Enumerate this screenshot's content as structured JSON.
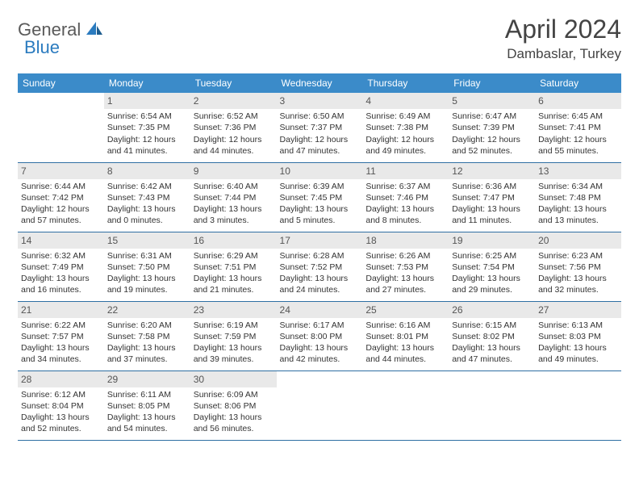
{
  "logo": {
    "text1": "General",
    "text2": "Blue"
  },
  "title": "April 2024",
  "location": "Dambaslar, Turkey",
  "colors": {
    "header_bg": "#3b8bc9",
    "header_text": "#ffffff",
    "daynum_bg": "#e9e9e9",
    "row_border": "#2f6fa3",
    "logo_gray": "#5a5a5a",
    "logo_blue": "#2b7bbf"
  },
  "day_headers": [
    "Sunday",
    "Monday",
    "Tuesday",
    "Wednesday",
    "Thursday",
    "Friday",
    "Saturday"
  ],
  "weeks": [
    [
      {
        "n": "",
        "s": "",
        "ss": "",
        "d": ""
      },
      {
        "n": "1",
        "s": "Sunrise: 6:54 AM",
        "ss": "Sunset: 7:35 PM",
        "d": "Daylight: 12 hours and 41 minutes."
      },
      {
        "n": "2",
        "s": "Sunrise: 6:52 AM",
        "ss": "Sunset: 7:36 PM",
        "d": "Daylight: 12 hours and 44 minutes."
      },
      {
        "n": "3",
        "s": "Sunrise: 6:50 AM",
        "ss": "Sunset: 7:37 PM",
        "d": "Daylight: 12 hours and 47 minutes."
      },
      {
        "n": "4",
        "s": "Sunrise: 6:49 AM",
        "ss": "Sunset: 7:38 PM",
        "d": "Daylight: 12 hours and 49 minutes."
      },
      {
        "n": "5",
        "s": "Sunrise: 6:47 AM",
        "ss": "Sunset: 7:39 PM",
        "d": "Daylight: 12 hours and 52 minutes."
      },
      {
        "n": "6",
        "s": "Sunrise: 6:45 AM",
        "ss": "Sunset: 7:41 PM",
        "d": "Daylight: 12 hours and 55 minutes."
      }
    ],
    [
      {
        "n": "7",
        "s": "Sunrise: 6:44 AM",
        "ss": "Sunset: 7:42 PM",
        "d": "Daylight: 12 hours and 57 minutes."
      },
      {
        "n": "8",
        "s": "Sunrise: 6:42 AM",
        "ss": "Sunset: 7:43 PM",
        "d": "Daylight: 13 hours and 0 minutes."
      },
      {
        "n": "9",
        "s": "Sunrise: 6:40 AM",
        "ss": "Sunset: 7:44 PM",
        "d": "Daylight: 13 hours and 3 minutes."
      },
      {
        "n": "10",
        "s": "Sunrise: 6:39 AM",
        "ss": "Sunset: 7:45 PM",
        "d": "Daylight: 13 hours and 5 minutes."
      },
      {
        "n": "11",
        "s": "Sunrise: 6:37 AM",
        "ss": "Sunset: 7:46 PM",
        "d": "Daylight: 13 hours and 8 minutes."
      },
      {
        "n": "12",
        "s": "Sunrise: 6:36 AM",
        "ss": "Sunset: 7:47 PM",
        "d": "Daylight: 13 hours and 11 minutes."
      },
      {
        "n": "13",
        "s": "Sunrise: 6:34 AM",
        "ss": "Sunset: 7:48 PM",
        "d": "Daylight: 13 hours and 13 minutes."
      }
    ],
    [
      {
        "n": "14",
        "s": "Sunrise: 6:32 AM",
        "ss": "Sunset: 7:49 PM",
        "d": "Daylight: 13 hours and 16 minutes."
      },
      {
        "n": "15",
        "s": "Sunrise: 6:31 AM",
        "ss": "Sunset: 7:50 PM",
        "d": "Daylight: 13 hours and 19 minutes."
      },
      {
        "n": "16",
        "s": "Sunrise: 6:29 AM",
        "ss": "Sunset: 7:51 PM",
        "d": "Daylight: 13 hours and 21 minutes."
      },
      {
        "n": "17",
        "s": "Sunrise: 6:28 AM",
        "ss": "Sunset: 7:52 PM",
        "d": "Daylight: 13 hours and 24 minutes."
      },
      {
        "n": "18",
        "s": "Sunrise: 6:26 AM",
        "ss": "Sunset: 7:53 PM",
        "d": "Daylight: 13 hours and 27 minutes."
      },
      {
        "n": "19",
        "s": "Sunrise: 6:25 AM",
        "ss": "Sunset: 7:54 PM",
        "d": "Daylight: 13 hours and 29 minutes."
      },
      {
        "n": "20",
        "s": "Sunrise: 6:23 AM",
        "ss": "Sunset: 7:56 PM",
        "d": "Daylight: 13 hours and 32 minutes."
      }
    ],
    [
      {
        "n": "21",
        "s": "Sunrise: 6:22 AM",
        "ss": "Sunset: 7:57 PM",
        "d": "Daylight: 13 hours and 34 minutes."
      },
      {
        "n": "22",
        "s": "Sunrise: 6:20 AM",
        "ss": "Sunset: 7:58 PM",
        "d": "Daylight: 13 hours and 37 minutes."
      },
      {
        "n": "23",
        "s": "Sunrise: 6:19 AM",
        "ss": "Sunset: 7:59 PM",
        "d": "Daylight: 13 hours and 39 minutes."
      },
      {
        "n": "24",
        "s": "Sunrise: 6:17 AM",
        "ss": "Sunset: 8:00 PM",
        "d": "Daylight: 13 hours and 42 minutes."
      },
      {
        "n": "25",
        "s": "Sunrise: 6:16 AM",
        "ss": "Sunset: 8:01 PM",
        "d": "Daylight: 13 hours and 44 minutes."
      },
      {
        "n": "26",
        "s": "Sunrise: 6:15 AM",
        "ss": "Sunset: 8:02 PM",
        "d": "Daylight: 13 hours and 47 minutes."
      },
      {
        "n": "27",
        "s": "Sunrise: 6:13 AM",
        "ss": "Sunset: 8:03 PM",
        "d": "Daylight: 13 hours and 49 minutes."
      }
    ],
    [
      {
        "n": "28",
        "s": "Sunrise: 6:12 AM",
        "ss": "Sunset: 8:04 PM",
        "d": "Daylight: 13 hours and 52 minutes."
      },
      {
        "n": "29",
        "s": "Sunrise: 6:11 AM",
        "ss": "Sunset: 8:05 PM",
        "d": "Daylight: 13 hours and 54 minutes."
      },
      {
        "n": "30",
        "s": "Sunrise: 6:09 AM",
        "ss": "Sunset: 8:06 PM",
        "d": "Daylight: 13 hours and 56 minutes."
      },
      {
        "n": "",
        "s": "",
        "ss": "",
        "d": ""
      },
      {
        "n": "",
        "s": "",
        "ss": "",
        "d": ""
      },
      {
        "n": "",
        "s": "",
        "ss": "",
        "d": ""
      },
      {
        "n": "",
        "s": "",
        "ss": "",
        "d": ""
      }
    ]
  ]
}
